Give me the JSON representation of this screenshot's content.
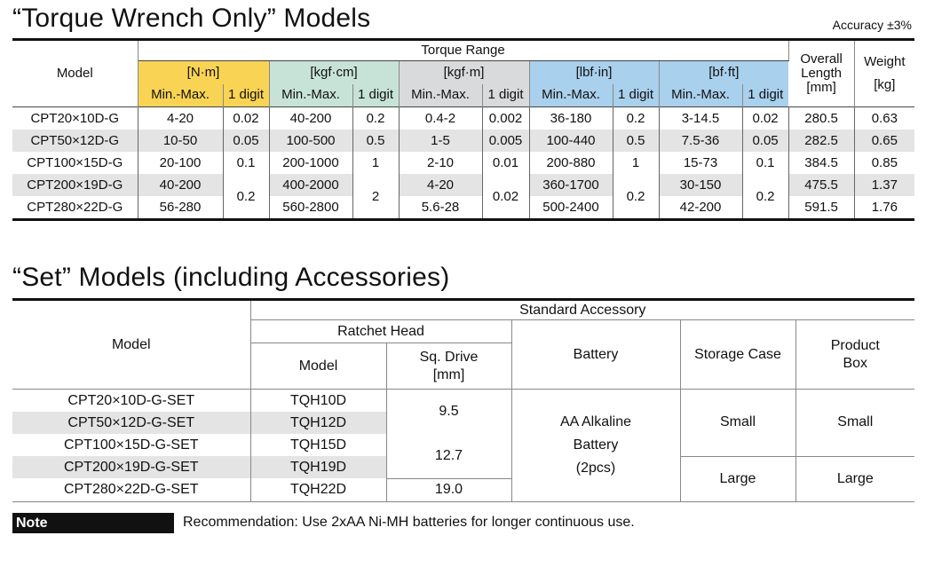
{
  "section1": {
    "title": "“Torque Wrench Only” Models",
    "accuracy": "Accuracy ±3%",
    "headers": {
      "model": "Model",
      "torque_range": "Torque Range",
      "overall_length": [
        "Overall",
        "Length",
        "[mm]"
      ],
      "weight": [
        "Weight",
        "[kg]"
      ],
      "units": [
        "[N·m]",
        "[kgf·cm]",
        "[kgf·m]",
        "[lbf·in]",
        "[bf·ft]"
      ],
      "minmax": "Min.-Max.",
      "digit": "1 digit"
    },
    "rows": [
      {
        "model": "CPT20×10D-G",
        "nm": "4-20",
        "nm_d": "0.02",
        "kgfcm": "40-200",
        "kgfcm_d": "0.2",
        "kgfm": "0.4-2",
        "kgfm_d": "0.002",
        "lbfin": "36-180",
        "lbfin_d": "0.2",
        "bfft": "3-14.5",
        "bfft_d": "0.02",
        "length": "280.5",
        "weight": "0.63"
      },
      {
        "model": "CPT50×12D-G",
        "nm": "10-50",
        "nm_d": "0.05",
        "kgfcm": "100-500",
        "kgfcm_d": "0.5",
        "kgfm": "1-5",
        "kgfm_d": "0.005",
        "lbfin": "100-440",
        "lbfin_d": "0.5",
        "bfft": "7.5-36",
        "bfft_d": "0.05",
        "length": "282.5",
        "weight": "0.65"
      },
      {
        "model": "CPT100×15D-G",
        "nm": "20-100",
        "nm_d": "0.1",
        "kgfcm": "200-1000",
        "kgfcm_d": "1",
        "kgfm": "2-10",
        "kgfm_d": "0.01",
        "lbfin": "200-880",
        "lbfin_d": "1",
        "bfft": "15-73",
        "bfft_d": "0.1",
        "length": "384.5",
        "weight": "0.85"
      },
      {
        "model": "CPT200×19D-G",
        "nm": "40-200",
        "kgfcm": "400-2000",
        "kgfm": "4-20",
        "lbfin": "360-1700",
        "bfft": "30-150",
        "length": "475.5",
        "weight": "1.37"
      },
      {
        "model": "CPT280×22D-G",
        "nm": "56-280",
        "kgfcm": "560-2800",
        "kgfm": "5.6-28",
        "lbfin": "500-2400",
        "bfft": "42-200",
        "length": "591.5",
        "weight": "1.76"
      }
    ],
    "merged_digits": {
      "nm": "0.2",
      "kgfcm": "2",
      "kgfm": "0.02",
      "lbfin": "0.2",
      "bfft": "0.2"
    }
  },
  "section2": {
    "title": "“Set” Models (including Accessories)",
    "headers": {
      "model": "Model",
      "standard_accessory": "Standard Accessory",
      "ratchet_head": "Ratchet Head",
      "rh_model": "Model",
      "sq_drive": [
        "Sq. Drive",
        "[mm]"
      ],
      "battery": "Battery",
      "storage_case": "Storage Case",
      "product_box": [
        "Product",
        "Box"
      ]
    },
    "rows": [
      {
        "model": "CPT20×10D-G-SET",
        "rh": "TQH10D"
      },
      {
        "model": "CPT50×12D-G-SET",
        "rh": "TQH12D"
      },
      {
        "model": "CPT100×15D-G-SET",
        "rh": "TQH15D"
      },
      {
        "model": "CPT200×19D-G-SET",
        "rh": "TQH19D"
      },
      {
        "model": "CPT280×22D-G-SET",
        "rh": "TQH22D"
      }
    ],
    "sq_drive_values": [
      "9.5",
      "12.7",
      "19.0"
    ],
    "battery_lines": [
      "AA Alkaline",
      "Battery",
      "(2pcs)"
    ],
    "storage_case": [
      "Small",
      "Large"
    ],
    "product_box": [
      "Small",
      "Large"
    ]
  },
  "note": {
    "label": "Note",
    "text": "Recommendation: Use 2xAA Ni-MH batteries for longer continuous use."
  }
}
